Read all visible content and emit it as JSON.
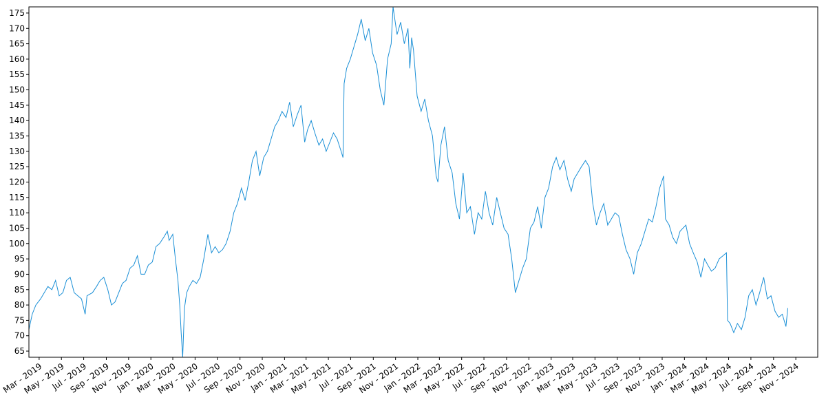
{
  "chart_data": {
    "type": "line",
    "title": "",
    "xlabel": "",
    "ylabel": "",
    "ylim": [
      63,
      177
    ],
    "xlim": [
      "2019-02-01",
      "2024-12-31"
    ],
    "grid": false,
    "legend": "none",
    "line_color": "#1a8fd6",
    "y_ticks": [
      65,
      70,
      75,
      80,
      85,
      90,
      95,
      100,
      105,
      110,
      115,
      120,
      125,
      130,
      135,
      140,
      145,
      150,
      155,
      160,
      165,
      170,
      175
    ],
    "x_ticks": [
      {
        "date": "2019-03-01",
        "label": "Mar - 2019"
      },
      {
        "date": "2019-05-01",
        "label": "May - 2019"
      },
      {
        "date": "2019-07-01",
        "label": "Jul - 2019"
      },
      {
        "date": "2019-09-01",
        "label": "Sep - 2019"
      },
      {
        "date": "2019-11-01",
        "label": "Nov - 2019"
      },
      {
        "date": "2020-01-01",
        "label": "Jan - 2020"
      },
      {
        "date": "2020-03-01",
        "label": "Mar - 2020"
      },
      {
        "date": "2020-05-01",
        "label": "May - 2020"
      },
      {
        "date": "2020-07-01",
        "label": "Jul - 2020"
      },
      {
        "date": "2020-09-01",
        "label": "Sep - 2020"
      },
      {
        "date": "2020-11-01",
        "label": "Nov - 2020"
      },
      {
        "date": "2021-01-01",
        "label": "Jan - 2021"
      },
      {
        "date": "2021-03-01",
        "label": "Mar - 2021"
      },
      {
        "date": "2021-05-01",
        "label": "May - 2021"
      },
      {
        "date": "2021-07-01",
        "label": "Jul - 2021"
      },
      {
        "date": "2021-09-01",
        "label": "Sep - 2021"
      },
      {
        "date": "2021-11-01",
        "label": "Nov - 2021"
      },
      {
        "date": "2022-01-01",
        "label": "Jan - 2022"
      },
      {
        "date": "2022-03-01",
        "label": "Mar - 2022"
      },
      {
        "date": "2022-05-01",
        "label": "May - 2022"
      },
      {
        "date": "2022-07-01",
        "label": "Jul - 2022"
      },
      {
        "date": "2022-09-01",
        "label": "Sep - 2022"
      },
      {
        "date": "2022-11-01",
        "label": "Nov - 2022"
      },
      {
        "date": "2023-01-01",
        "label": "Jan - 2023"
      },
      {
        "date": "2023-03-01",
        "label": "Mar - 2023"
      },
      {
        "date": "2023-05-01",
        "label": "May - 2023"
      },
      {
        "date": "2023-07-01",
        "label": "Jul - 2023"
      },
      {
        "date": "2023-09-01",
        "label": "Sep - 2023"
      },
      {
        "date": "2023-11-01",
        "label": "Nov - 2023"
      },
      {
        "date": "2024-01-01",
        "label": "Jan - 2024"
      },
      {
        "date": "2024-03-01",
        "label": "Mar - 2024"
      },
      {
        "date": "2024-05-01",
        "label": "May - 2024"
      },
      {
        "date": "2024-07-01",
        "label": "Jul - 2024"
      },
      {
        "date": "2024-09-01",
        "label": "Sep - 2024"
      },
      {
        "date": "2024-11-01",
        "label": "Nov - 2024"
      }
    ],
    "series": [
      {
        "points": [
          [
            "2019-02-01",
            72
          ],
          [
            "2019-02-10",
            77
          ],
          [
            "2019-02-20",
            80
          ],
          [
            "2019-03-05",
            82
          ],
          [
            "2019-03-15",
            84
          ],
          [
            "2019-03-25",
            86
          ],
          [
            "2019-04-05",
            85
          ],
          [
            "2019-04-15",
            88
          ],
          [
            "2019-04-25",
            83
          ],
          [
            "2019-05-05",
            84
          ],
          [
            "2019-05-15",
            88
          ],
          [
            "2019-05-25",
            89
          ],
          [
            "2019-06-05",
            84
          ],
          [
            "2019-06-15",
            83
          ],
          [
            "2019-06-25",
            82
          ],
          [
            "2019-07-05",
            77
          ],
          [
            "2019-07-10",
            83
          ],
          [
            "2019-07-25",
            84
          ],
          [
            "2019-08-05",
            86
          ],
          [
            "2019-08-15",
            88
          ],
          [
            "2019-08-25",
            89
          ],
          [
            "2019-09-05",
            85
          ],
          [
            "2019-09-15",
            80
          ],
          [
            "2019-09-25",
            81
          ],
          [
            "2019-10-05",
            84
          ],
          [
            "2019-10-15",
            87
          ],
          [
            "2019-10-25",
            88
          ],
          [
            "2019-11-05",
            92
          ],
          [
            "2019-11-15",
            93
          ],
          [
            "2019-11-25",
            96
          ],
          [
            "2019-12-05",
            90
          ],
          [
            "2019-12-15",
            90
          ],
          [
            "2019-12-25",
            93
          ],
          [
            "2020-01-05",
            94
          ],
          [
            "2020-01-15",
            99
          ],
          [
            "2020-01-25",
            100
          ],
          [
            "2020-02-05",
            102
          ],
          [
            "2020-02-15",
            104
          ],
          [
            "2020-02-20",
            101
          ],
          [
            "2020-03-01",
            103
          ],
          [
            "2020-03-08",
            95
          ],
          [
            "2020-03-15",
            88
          ],
          [
            "2020-03-20",
            80
          ],
          [
            "2020-03-24",
            71
          ],
          [
            "2020-03-28",
            63
          ],
          [
            "2020-04-02",
            79
          ],
          [
            "2020-04-08",
            84
          ],
          [
            "2020-04-15",
            86
          ],
          [
            "2020-04-25",
            88
          ],
          [
            "2020-05-05",
            87
          ],
          [
            "2020-05-15",
            89
          ],
          [
            "2020-05-25",
            95
          ],
          [
            "2020-06-05",
            103
          ],
          [
            "2020-06-15",
            97
          ],
          [
            "2020-06-25",
            99
          ],
          [
            "2020-07-05",
            97
          ],
          [
            "2020-07-15",
            98
          ],
          [
            "2020-07-25",
            100
          ],
          [
            "2020-08-05",
            104
          ],
          [
            "2020-08-15",
            110
          ],
          [
            "2020-08-25",
            113
          ],
          [
            "2020-09-05",
            118
          ],
          [
            "2020-09-15",
            114
          ],
          [
            "2020-09-25",
            120
          ],
          [
            "2020-10-05",
            127
          ],
          [
            "2020-10-15",
            130
          ],
          [
            "2020-10-25",
            122
          ],
          [
            "2020-11-05",
            128
          ],
          [
            "2020-11-15",
            130
          ],
          [
            "2020-11-25",
            134
          ],
          [
            "2020-12-05",
            138
          ],
          [
            "2020-12-15",
            140
          ],
          [
            "2020-12-25",
            143
          ],
          [
            "2021-01-05",
            141
          ],
          [
            "2021-01-15",
            146
          ],
          [
            "2021-01-25",
            138
          ],
          [
            "2021-02-05",
            142
          ],
          [
            "2021-02-15",
            145
          ],
          [
            "2021-02-25",
            133
          ],
          [
            "2021-03-05",
            137
          ],
          [
            "2021-03-15",
            140
          ],
          [
            "2021-03-25",
            136
          ],
          [
            "2021-04-05",
            132
          ],
          [
            "2021-04-15",
            134
          ],
          [
            "2021-04-25",
            130
          ],
          [
            "2021-05-05",
            133
          ],
          [
            "2021-05-15",
            136
          ],
          [
            "2021-05-25",
            134
          ],
          [
            "2021-06-05",
            130
          ],
          [
            "2021-06-10",
            128
          ],
          [
            "2021-06-13",
            152
          ],
          [
            "2021-06-20",
            157
          ],
          [
            "2021-06-30",
            160
          ],
          [
            "2021-07-10",
            164
          ],
          [
            "2021-07-20",
            168
          ],
          [
            "2021-07-30",
            173
          ],
          [
            "2021-08-10",
            166
          ],
          [
            "2021-08-20",
            170
          ],
          [
            "2021-08-30",
            162
          ],
          [
            "2021-09-10",
            158
          ],
          [
            "2021-09-20",
            150
          ],
          [
            "2021-09-30",
            145
          ],
          [
            "2021-10-10",
            160
          ],
          [
            "2021-10-20",
            165
          ],
          [
            "2021-10-25",
            177
          ],
          [
            "2021-11-05",
            168
          ],
          [
            "2021-11-15",
            172
          ],
          [
            "2021-11-25",
            165
          ],
          [
            "2021-12-05",
            170
          ],
          [
            "2021-12-10",
            157
          ],
          [
            "2021-12-15",
            167
          ],
          [
            "2021-12-20",
            163
          ],
          [
            "2021-12-30",
            148
          ],
          [
            "2022-01-10",
            143
          ],
          [
            "2022-01-20",
            147
          ],
          [
            "2022-01-30",
            140
          ],
          [
            "2022-02-10",
            135
          ],
          [
            "2022-02-20",
            122
          ],
          [
            "2022-02-25",
            120
          ],
          [
            "2022-03-05",
            132
          ],
          [
            "2022-03-15",
            138
          ],
          [
            "2022-03-25",
            127
          ],
          [
            "2022-04-05",
            123
          ],
          [
            "2022-04-15",
            113
          ],
          [
            "2022-04-25",
            108
          ],
          [
            "2022-05-05",
            123
          ],
          [
            "2022-05-15",
            110
          ],
          [
            "2022-05-25",
            112
          ],
          [
            "2022-06-05",
            103
          ],
          [
            "2022-06-15",
            110
          ],
          [
            "2022-06-25",
            108
          ],
          [
            "2022-07-05",
            117
          ],
          [
            "2022-07-15",
            110
          ],
          [
            "2022-07-25",
            106
          ],
          [
            "2022-08-05",
            115
          ],
          [
            "2022-08-15",
            110
          ],
          [
            "2022-08-25",
            105
          ],
          [
            "2022-09-05",
            103
          ],
          [
            "2022-09-15",
            95
          ],
          [
            "2022-09-25",
            84
          ],
          [
            "2022-10-05",
            88
          ],
          [
            "2022-10-15",
            92
          ],
          [
            "2022-10-25",
            95
          ],
          [
            "2022-11-05",
            105
          ],
          [
            "2022-11-15",
            107
          ],
          [
            "2022-11-25",
            112
          ],
          [
            "2022-12-05",
            105
          ],
          [
            "2022-12-15",
            115
          ],
          [
            "2022-12-25",
            118
          ],
          [
            "2023-01-05",
            125
          ],
          [
            "2023-01-15",
            128
          ],
          [
            "2023-01-25",
            124
          ],
          [
            "2023-02-05",
            127
          ],
          [
            "2023-02-15",
            121
          ],
          [
            "2023-02-25",
            117
          ],
          [
            "2023-03-05",
            121
          ],
          [
            "2023-03-15",
            123
          ],
          [
            "2023-03-25",
            125
          ],
          [
            "2023-04-05",
            127
          ],
          [
            "2023-04-15",
            125
          ],
          [
            "2023-04-25",
            113
          ],
          [
            "2023-05-05",
            106
          ],
          [
            "2023-05-15",
            110
          ],
          [
            "2023-05-25",
            113
          ],
          [
            "2023-06-05",
            106
          ],
          [
            "2023-06-15",
            108
          ],
          [
            "2023-06-25",
            110
          ],
          [
            "2023-07-05",
            109
          ],
          [
            "2023-07-15",
            103
          ],
          [
            "2023-07-25",
            98
          ],
          [
            "2023-08-05",
            95
          ],
          [
            "2023-08-15",
            90
          ],
          [
            "2023-08-25",
            97
          ],
          [
            "2023-09-05",
            100
          ],
          [
            "2023-09-15",
            104
          ],
          [
            "2023-09-25",
            108
          ],
          [
            "2023-10-05",
            107
          ],
          [
            "2023-10-15",
            112
          ],
          [
            "2023-10-25",
            118
          ],
          [
            "2023-11-05",
            122
          ],
          [
            "2023-11-10",
            108
          ],
          [
            "2023-11-20",
            106
          ],
          [
            "2023-11-30",
            102
          ],
          [
            "2023-12-10",
            100
          ],
          [
            "2023-12-20",
            104
          ],
          [
            "2024-01-05",
            106
          ],
          [
            "2024-01-15",
            100
          ],
          [
            "2024-01-25",
            97
          ],
          [
            "2024-02-05",
            94
          ],
          [
            "2024-02-15",
            89
          ],
          [
            "2024-02-25",
            95
          ],
          [
            "2024-03-05",
            93
          ],
          [
            "2024-03-15",
            91
          ],
          [
            "2024-03-25",
            92
          ],
          [
            "2024-04-05",
            95
          ],
          [
            "2024-04-15",
            96
          ],
          [
            "2024-04-25",
            97
          ],
          [
            "2024-04-28",
            75
          ],
          [
            "2024-05-05",
            74
          ],
          [
            "2024-05-15",
            71
          ],
          [
            "2024-05-25",
            74
          ],
          [
            "2024-06-05",
            72
          ],
          [
            "2024-06-15",
            76
          ],
          [
            "2024-06-25",
            83
          ],
          [
            "2024-07-05",
            85
          ],
          [
            "2024-07-15",
            80
          ],
          [
            "2024-07-25",
            84
          ],
          [
            "2024-08-05",
            89
          ],
          [
            "2024-08-15",
            82
          ],
          [
            "2024-08-25",
            83
          ],
          [
            "2024-09-05",
            78
          ],
          [
            "2024-09-15",
            76
          ],
          [
            "2024-09-25",
            77
          ],
          [
            "2024-10-05",
            73
          ],
          [
            "2024-10-10",
            79
          ]
        ]
      }
    ]
  }
}
